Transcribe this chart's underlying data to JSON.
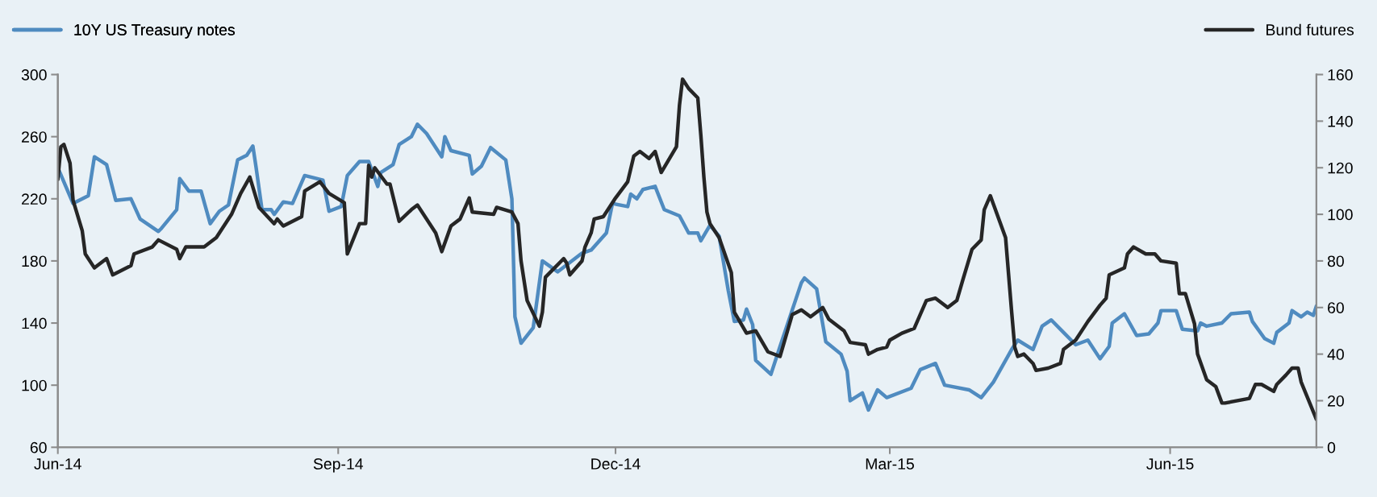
{
  "chart_data": {
    "type": "line",
    "legend": "top",
    "grid": false,
    "marker": "none",
    "line_style": "solid",
    "xlim": [
      "2014-06-01",
      "2015-07-19"
    ],
    "xticks": [
      {
        "value": "2014-06-01",
        "label": "Jun-14"
      },
      {
        "value": "2014-09-01",
        "label": "Sep-14"
      },
      {
        "value": "2014-12-01",
        "label": "Dec-14"
      },
      {
        "value": "2015-03-01",
        "label": "Mar-15"
      },
      {
        "value": "2015-06-01",
        "label": "Jun-15"
      }
    ],
    "ylim": [
      60,
      300
    ],
    "yticks": [
      60,
      100,
      140,
      180,
      220,
      260,
      300
    ],
    "y2lim": [
      0,
      160
    ],
    "y2ticks": [
      0,
      20,
      40,
      60,
      80,
      100,
      120,
      140,
      160
    ],
    "series": [
      {
        "name": "10Y US Treasury notes",
        "color": "#4f8bc0",
        "axis": "y",
        "x": [
          "2014-06-01",
          "2014-06-06",
          "2014-06-11",
          "2014-06-13",
          "2014-06-17",
          "2014-06-20",
          "2014-06-25",
          "2014-06-28",
          "2014-07-04",
          "2014-07-05",
          "2014-07-10",
          "2014-07-11",
          "2014-07-14",
          "2014-07-18",
          "2014-07-21",
          "2014-07-24",
          "2014-07-27",
          "2014-07-30",
          "2014-08-02",
          "2014-08-04",
          "2014-08-05",
          "2014-08-07",
          "2014-08-10",
          "2014-08-11",
          "2014-08-14",
          "2014-08-17",
          "2014-08-21",
          "2014-08-27",
          "2014-08-29",
          "2014-09-02",
          "2014-09-04",
          "2014-09-08",
          "2014-09-11",
          "2014-09-14",
          "2014-09-15",
          "2014-09-19",
          "2014-09-21",
          "2014-09-25",
          "2014-09-27",
          "2014-09-30",
          "2014-10-05",
          "2014-10-06",
          "2014-10-08",
          "2014-10-14",
          "2014-10-15",
          "2014-10-18",
          "2014-10-21",
          "2014-10-26",
          "2014-10-28",
          "2014-10-29",
          "2014-10-31",
          "2014-11-04",
          "2014-11-07",
          "2014-11-12",
          "2014-11-20",
          "2014-11-23",
          "2014-11-28",
          "2014-11-30",
          "2014-12-05",
          "2014-12-06",
          "2014-12-08",
          "2014-12-10",
          "2014-12-14",
          "2014-12-17",
          "2014-12-22",
          "2014-12-25",
          "2014-12-28",
          "2014-12-29",
          "2015-01-01",
          "2015-01-04",
          "2015-01-07",
          "2015-01-09",
          "2015-01-12",
          "2015-01-13",
          "2015-01-15",
          "2015-01-16",
          "2015-01-21",
          "2015-01-24",
          "2015-01-31",
          "2015-02-01",
          "2015-02-05",
          "2015-02-08",
          "2015-02-13",
          "2015-02-15",
          "2015-02-16",
          "2015-02-20",
          "2015-02-22",
          "2015-02-25",
          "2015-02-28",
          "2015-03-08",
          "2015-03-11",
          "2015-03-16",
          "2015-03-19",
          "2015-03-27",
          "2015-03-31",
          "2015-04-04",
          "2015-04-10",
          "2015-04-12",
          "2015-04-17",
          "2015-04-20",
          "2015-04-23",
          "2015-04-27",
          "2015-05-01",
          "2015-05-05",
          "2015-05-09",
          "2015-05-12",
          "2015-05-13",
          "2015-05-17",
          "2015-05-21",
          "2015-05-25",
          "2015-05-28",
          "2015-05-29",
          "2015-06-03",
          "2015-06-05",
          "2015-06-10",
          "2015-06-11",
          "2015-06-13",
          "2015-06-18",
          "2015-06-21",
          "2015-06-27",
          "2015-06-28",
          "2015-07-02",
          "2015-07-05",
          "2015-07-06",
          "2015-07-10",
          "2015-07-11",
          "2015-07-14",
          "2015-07-16",
          "2015-07-18",
          "2015-07-19"
        ],
        "values": [
          240,
          217,
          222,
          247,
          242,
          219,
          220,
          207,
          199,
          201,
          213,
          233,
          225,
          225,
          204,
          212,
          216,
          245,
          248,
          254,
          241,
          213,
          213,
          210,
          218,
          217,
          235,
          232,
          212,
          215,
          235,
          244,
          244,
          228,
          237,
          242,
          255,
          260,
          268,
          262,
          247,
          260,
          251,
          248,
          236,
          241,
          253,
          245,
          220,
          144,
          127,
          137,
          180,
          173,
          185,
          187,
          198,
          217,
          215,
          223,
          220,
          226,
          228,
          213,
          209,
          198,
          198,
          193,
          203,
          196,
          161,
          141,
          142,
          149,
          139,
          116,
          107,
          125,
          166,
          169,
          162,
          128,
          120,
          109,
          90,
          95,
          84,
          97,
          92,
          98,
          110,
          114,
          100,
          97,
          92,
          102,
          123,
          129,
          123,
          138,
          142,
          134,
          126,
          129,
          117,
          125,
          140,
          146,
          132,
          133,
          140,
          148,
          148,
          136,
          135,
          140,
          138,
          140,
          146,
          147,
          141,
          130,
          127,
          134,
          140,
          148,
          144,
          147,
          145,
          151
        ]
      },
      {
        "name": "Bund futures",
        "color": "#262626",
        "axis": "y2",
        "x": [
          "2014-06-01",
          "2014-06-02",
          "2014-06-03",
          "2014-06-05",
          "2014-06-06",
          "2014-06-09",
          "2014-06-10",
          "2014-06-13",
          "2014-06-17",
          "2014-06-19",
          "2014-06-25",
          "2014-06-26",
          "2014-07-02",
          "2014-07-04",
          "2014-07-10",
          "2014-07-11",
          "2014-07-13",
          "2014-07-19",
          "2014-07-23",
          "2014-07-28",
          "2014-07-31",
          "2014-08-03",
          "2014-08-06",
          "2014-08-11",
          "2014-08-12",
          "2014-08-14",
          "2014-08-20",
          "2014-08-21",
          "2014-08-26",
          "2014-08-29",
          "2014-09-03",
          "2014-09-04",
          "2014-09-08",
          "2014-09-10",
          "2014-09-11",
          "2014-09-12",
          "2014-09-13",
          "2014-09-17",
          "2014-09-18",
          "2014-09-21",
          "2014-09-25",
          "2014-09-27",
          "2014-10-03",
          "2014-10-05",
          "2014-10-08",
          "2014-10-11",
          "2014-10-14",
          "2014-10-15",
          "2014-10-22",
          "2014-10-23",
          "2014-10-28",
          "2014-10-30",
          "2014-10-31",
          "2014-11-02",
          "2014-11-06",
          "2014-11-07",
          "2014-11-08",
          "2014-11-14",
          "2014-11-15",
          "2014-11-16",
          "2014-11-20",
          "2014-11-21",
          "2014-11-23",
          "2014-11-24",
          "2014-11-27",
          "2014-12-01",
          "2014-12-05",
          "2014-12-07",
          "2014-12-09",
          "2014-12-12",
          "2014-12-14",
          "2014-12-16",
          "2014-12-21",
          "2014-12-22",
          "2014-12-23",
          "2014-12-25",
          "2014-12-28",
          "2014-12-29",
          "2014-12-30",
          "2014-12-31",
          "2015-01-01",
          "2015-01-04",
          "2015-01-08",
          "2015-01-09",
          "2015-01-13",
          "2015-01-16",
          "2015-01-20",
          "2015-01-24",
          "2015-01-28",
          "2015-01-31",
          "2015-02-03",
          "2015-02-07",
          "2015-02-09",
          "2015-02-14",
          "2015-02-16",
          "2015-02-21",
          "2015-02-22",
          "2015-02-25",
          "2015-02-28",
          "2015-03-01",
          "2015-03-05",
          "2015-03-09",
          "2015-03-13",
          "2015-03-16",
          "2015-03-20",
          "2015-03-23",
          "2015-03-25",
          "2015-03-28",
          "2015-03-31",
          "2015-04-01",
          "2015-04-03",
          "2015-04-08",
          "2015-04-10",
          "2015-04-11",
          "2015-04-12",
          "2015-04-14",
          "2015-04-17",
          "2015-04-18",
          "2015-04-22",
          "2015-04-26",
          "2015-04-27",
          "2015-05-01",
          "2015-05-05",
          "2015-05-09",
          "2015-05-11",
          "2015-05-12",
          "2015-05-17",
          "2015-05-18",
          "2015-05-20",
          "2015-05-24",
          "2015-05-27",
          "2015-05-29",
          "2015-06-03",
          "2015-06-04",
          "2015-06-06",
          "2015-06-09",
          "2015-06-10",
          "2015-06-13",
          "2015-06-16",
          "2015-06-18",
          "2015-06-19",
          "2015-06-27",
          "2015-06-29",
          "2015-07-01",
          "2015-07-05",
          "2015-07-06",
          "2015-07-09",
          "2015-07-11",
          "2015-07-13",
          "2015-07-14",
          "2015-07-19"
        ],
        "values": [
          115,
          129,
          130,
          122,
          106,
          93,
          83,
          77,
          81,
          74,
          78,
          83,
          86,
          89,
          85,
          81,
          86,
          86,
          90,
          100,
          109,
          116,
          103,
          96,
          98,
          95,
          99,
          110,
          114,
          109,
          105,
          83,
          96,
          96,
          121,
          116,
          120,
          113,
          113,
          97,
          102,
          104,
          92,
          84,
          95,
          98,
          107,
          101,
          100,
          103,
          101,
          96,
          80,
          63,
          52,
          58,
          73,
          81,
          79,
          74,
          80,
          86,
          92,
          98,
          99,
          107,
          114,
          125,
          127,
          124,
          127,
          118,
          129,
          147,
          158,
          154,
          150,
          134,
          116,
          101,
          96,
          90,
          75,
          58,
          49,
          50,
          41,
          39,
          57,
          59,
          56,
          60,
          55,
          50,
          45,
          44,
          40,
          42,
          43,
          46,
          49,
          51,
          63,
          64,
          60,
          63,
          72,
          85,
          89,
          102,
          108,
          90,
          58,
          43,
          39,
          40,
          36,
          33,
          34,
          36,
          42,
          46,
          54,
          61,
          64,
          74,
          77,
          83,
          86,
          83,
          83,
          80,
          79,
          66,
          66,
          53,
          40,
          29,
          26,
          19,
          19,
          21,
          27,
          27,
          24,
          27,
          31,
          34,
          34,
          28,
          12
        ]
      }
    ]
  }
}
